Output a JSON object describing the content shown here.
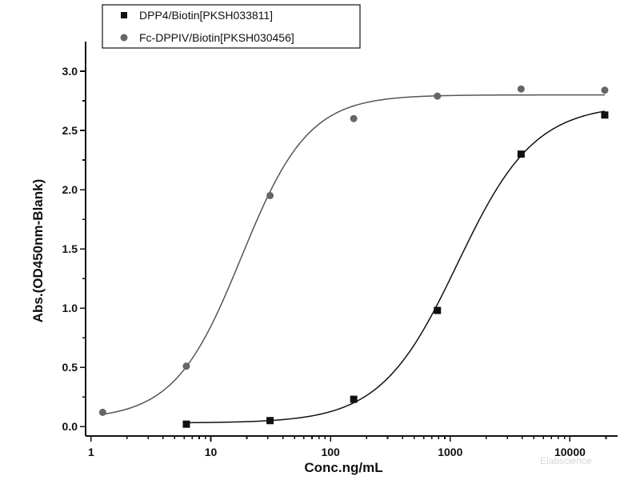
{
  "chart_data": {
    "type": "scatter",
    "title": "",
    "xlabel": "Conc.ng/mL",
    "ylabel": "Abs.(OD450nm-Blank)",
    "xscale": "log",
    "xlim": [
      0.9,
      25000
    ],
    "ylim": [
      -0.08,
      3.25
    ],
    "xticks": [
      1,
      10,
      100,
      1000,
      10000
    ],
    "yticks": [
      0.0,
      0.5,
      1.0,
      1.5,
      2.0,
      2.5,
      3.0
    ],
    "grid": false,
    "legend_position": "top-left",
    "watermark": "Elabscience",
    "series": [
      {
        "name": "DPP4/Biotin[PKSH033811]",
        "marker": "square",
        "color": "#111111",
        "x": [
          6.25,
          31.25,
          156.25,
          781.25,
          3906.25,
          19531.25
        ],
        "y": [
          0.02,
          0.05,
          0.23,
          0.98,
          2.3,
          2.63
        ],
        "fit": {
          "bottom": 0.03,
          "top": 2.72,
          "ec50": 1150,
          "hill": 1.35
        }
      },
      {
        "name": "Fc-DPPIV/Biotin[PKSH030456]",
        "marker": "circle",
        "color": "#666666",
        "x": [
          1.25,
          6.25,
          31.25,
          156.25,
          781.25,
          3906.25,
          19531.25
        ],
        "y": [
          0.12,
          0.51,
          1.95,
          2.6,
          2.79,
          2.85,
          2.84
        ],
        "fit": {
          "bottom": 0.06,
          "top": 2.8,
          "ec50": 18,
          "hill": 1.55
        }
      }
    ]
  }
}
